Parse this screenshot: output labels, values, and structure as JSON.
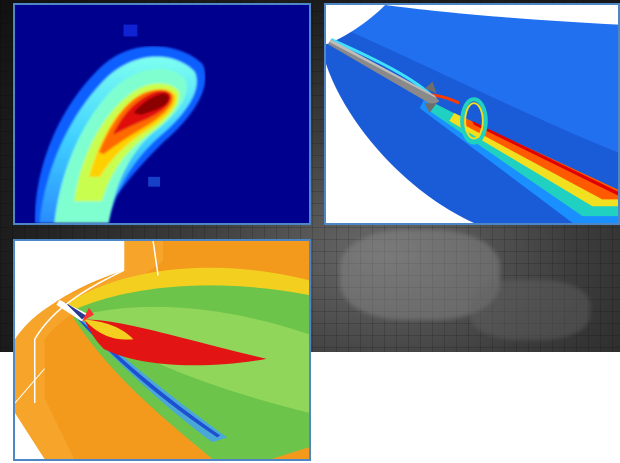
{
  "scene": {
    "description_colors": {
      "background_top": "#1d1d1d",
      "background_bottom": "#ffffff",
      "panel_border": "#4f86c6"
    },
    "panels": [
      {
        "name": "heatmap-panel",
        "icon": "heatmap-image"
      },
      {
        "name": "missile-flow-panel",
        "icon": "cfd-missile-image"
      },
      {
        "name": "shock-wave-panel",
        "icon": "cfd-shock-image"
      }
    ]
  }
}
